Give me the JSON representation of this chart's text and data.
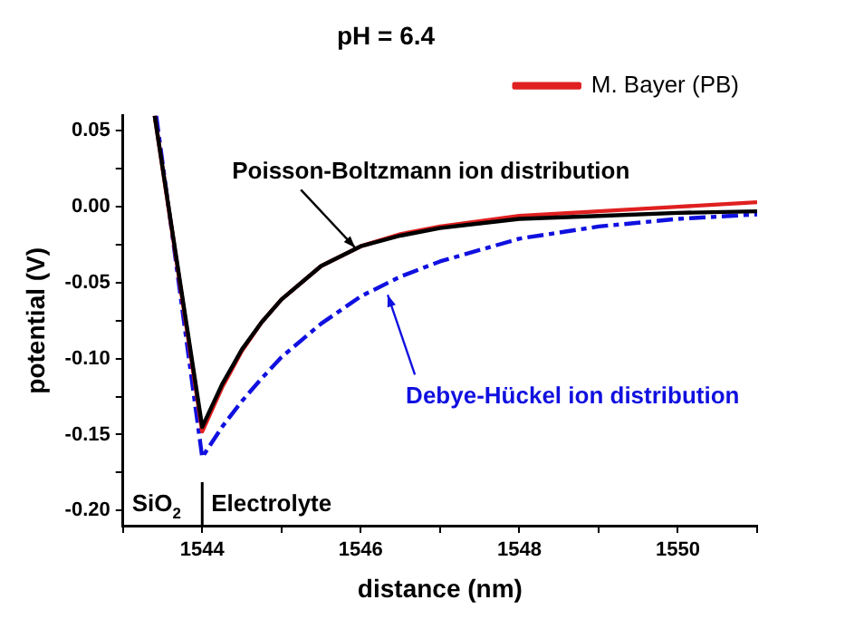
{
  "chart_data": {
    "type": "line",
    "title": "pH = 6.4",
    "xlabel": "distance (nm)",
    "ylabel": "potential (V)",
    "xlim": [
      1543,
      1551
    ],
    "ylim": [
      -0.21,
      0.06
    ],
    "xticks": [
      {
        "value": 1543,
        "label": null
      },
      1544,
      {
        "value": 1545,
        "label": null
      },
      1546,
      {
        "value": 1547,
        "label": null
      },
      1548,
      {
        "value": 1549,
        "label": null
      },
      1550,
      {
        "value": 1551,
        "label": null
      }
    ],
    "yticks": [
      {
        "value": -0.2,
        "label": "-0.20"
      },
      {
        "value": -0.175,
        "label": null
      },
      -0.15,
      {
        "value": -0.125,
        "label": null
      },
      {
        "value": -0.1,
        "label": "-0.10"
      },
      {
        "value": -0.075,
        "label": null
      },
      -0.05,
      {
        "value": -0.025,
        "label": null
      },
      {
        "value": 0,
        "label": "0.00"
      },
      {
        "value": 0.025,
        "label": null
      },
      0.05
    ],
    "grid": false,
    "legend": "top right",
    "marker": "none",
    "x": [
      1543.4,
      1544,
      1544.25,
      1544.5,
      1544.75,
      1545,
      1545.5,
      1546,
      1546.5,
      1547,
      1548,
      1549,
      1550,
      1551
    ],
    "series": [
      {
        "color": "#000000",
        "line_style": "solid",
        "values": [
          0.06,
          -0.145,
          -0.117,
          -0.094,
          -0.076,
          -0.061,
          -0.039,
          -0.026,
          -0.019,
          -0.014,
          -0.008,
          -0.006,
          -0.004,
          -0.003
        ]
      },
      {
        "name": "M. Bayer (PB)",
        "color": "#e02020",
        "line_style": "solid",
        "values": [
          0.06,
          -0.148,
          -0.119,
          -0.095,
          -0.076,
          -0.061,
          -0.039,
          -0.026,
          -0.018,
          -0.013,
          -0.006,
          -0.003,
          0.0,
          0.003
        ]
      },
      {
        "color": "#1010e0",
        "line_style": "dashed",
        "x": [
          1543.42,
          1544,
          1544.25,
          1544.5,
          1544.75,
          1545,
          1545.5,
          1546,
          1546.5,
          1547,
          1548,
          1549,
          1550,
          1551
        ],
        "values": [
          0.06,
          -0.165,
          -0.145,
          -0.128,
          -0.113,
          -0.099,
          -0.077,
          -0.059,
          -0.046,
          -0.036,
          -0.021,
          -0.013,
          -0.008,
          -0.005
        ]
      }
    ],
    "ref_lines": [
      {
        "axis": "x",
        "value": 1544,
        "color": "#000000"
      }
    ],
    "annotations": [
      {
        "text": "Poisson-Boltzmann ion distribution",
        "x": 1545.93,
        "y": -0.027
      },
      {
        "text": "Debye-Hückel ion distribution",
        "x": 1546.34,
        "y": -0.058
      },
      "SiO$_{2}$",
      "Electrolyte"
    ]
  }
}
